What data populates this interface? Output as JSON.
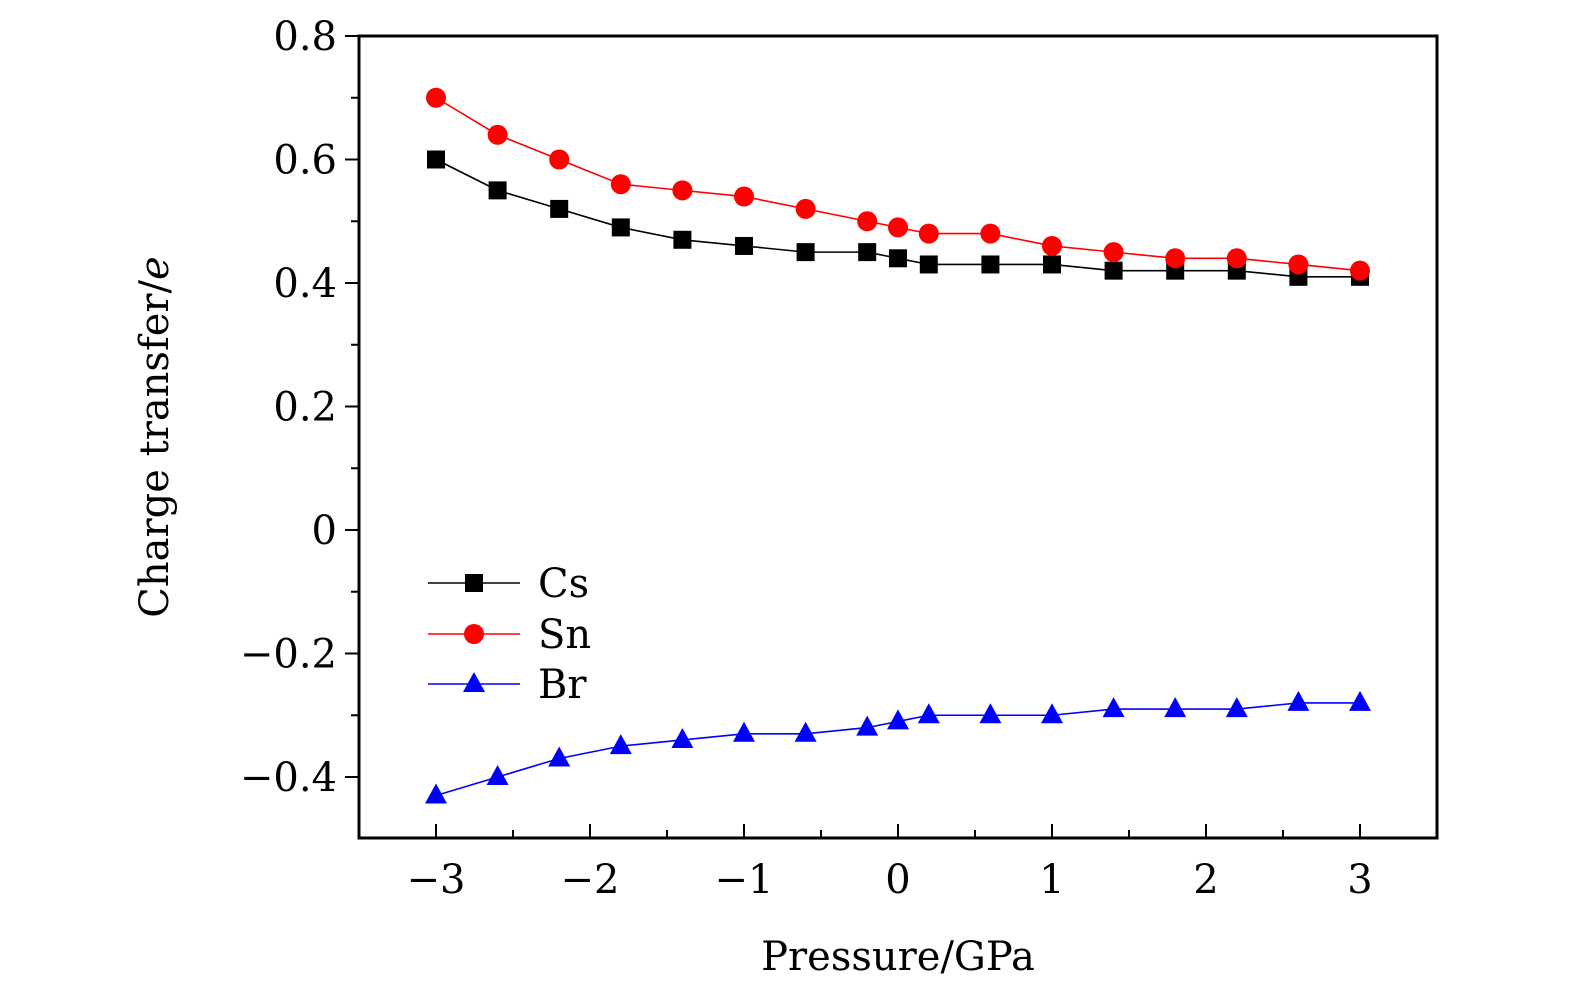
{
  "chart_data": {
    "type": "line",
    "title": "",
    "xlabel": "Pressure/GPa",
    "ylabel_main": "Charge transfer/",
    "ylabel_italic": "e",
    "xlim": [
      -3.5,
      3.5
    ],
    "ylim": [
      -0.5,
      0.8
    ],
    "x_ticks": [
      -3,
      -2,
      -1,
      0,
      1,
      2,
      3
    ],
    "x_tick_labels": [
      "−3",
      "−2",
      "−1",
      "0",
      "1",
      "2",
      "3"
    ],
    "x_minor_ticks": [
      -2.5,
      -1.5,
      -0.5,
      0.5,
      1.5,
      2.5
    ],
    "y_ticks": [
      -0.4,
      -0.2,
      0,
      0.2,
      0.4,
      0.6,
      0.8
    ],
    "y_tick_labels": [
      "−0.4",
      "−0.2",
      "0",
      "0.2",
      "0.4",
      "0.6",
      "0.8"
    ],
    "y_minor_ticks": [
      -0.3,
      -0.1,
      0.1,
      0.3,
      0.5,
      0.7
    ],
    "grid": false,
    "legend_position": "center-left",
    "x": [
      -3,
      -2.6,
      -2.2,
      -1.8,
      -1.4,
      -1,
      -0.6,
      -0.2,
      0,
      0.2,
      0.6,
      1,
      1.4,
      1.8,
      2.2,
      2.6,
      3
    ],
    "series": [
      {
        "name": "Cs",
        "color": "#000000",
        "marker": "square",
        "values": [
          0.6,
          0.55,
          0.52,
          0.49,
          0.47,
          0.46,
          0.45,
          0.45,
          0.44,
          0.43,
          0.43,
          0.43,
          0.42,
          0.42,
          0.42,
          0.41,
          0.41
        ]
      },
      {
        "name": "Sn",
        "color": "#ff0000",
        "marker": "circle",
        "values": [
          0.7,
          0.64,
          0.6,
          0.56,
          0.55,
          0.54,
          0.52,
          0.5,
          0.49,
          0.48,
          0.48,
          0.46,
          0.45,
          0.44,
          0.44,
          0.43,
          0.42
        ]
      },
      {
        "name": "Br",
        "color": "#0000ff",
        "marker": "triangle",
        "values": [
          -0.43,
          -0.4,
          -0.37,
          -0.35,
          -0.34,
          -0.33,
          -0.33,
          -0.32,
          -0.31,
          -0.3,
          -0.3,
          -0.3,
          -0.29,
          -0.29,
          -0.29,
          -0.28,
          -0.28
        ]
      }
    ]
  }
}
